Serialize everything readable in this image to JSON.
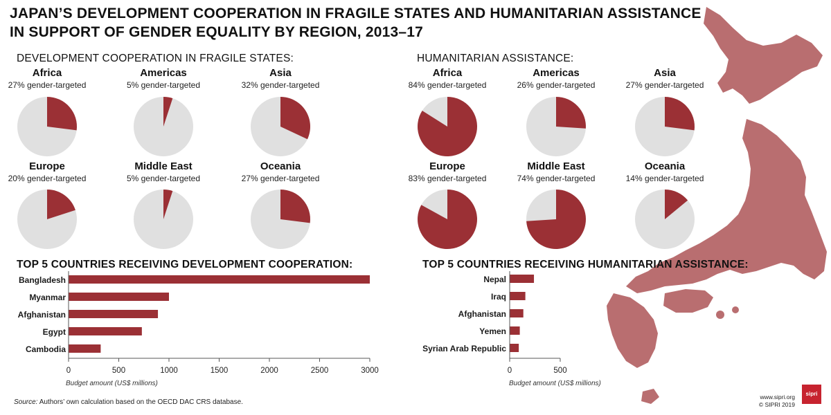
{
  "title_line1": "JAPAN’S DEVELOPMENT COOPERATION IN FRAGILE STATES AND HUMANITARIAN ASSISTANCE",
  "title_line2": "IN SUPPORT OF GENDER EQUALITY BY REGION, 2013–17",
  "colors": {
    "accent": "#9b3035",
    "pie_rest": "#e0e0e0",
    "map": "#b96e70"
  },
  "source_label": "Source:",
  "source_text": " Authors’ own calculation based on the OECD DAC CRS database.",
  "website": "www.sipri.org",
  "copyright": "© SIPRI 2019",
  "logo_text": "sipri",
  "chart_data": [
    {
      "type": "pie",
      "title": "DEVELOPMENT COOPERATION IN FRAGILE STATES:",
      "suffix": "gender-targeted",
      "slices": [
        {
          "region": "Africa",
          "pct": 27,
          "pct_label": "27% gender-targeted"
        },
        {
          "region": "Americas",
          "pct": 5,
          "pct_label": "5% gender-targeted"
        },
        {
          "region": "Asia",
          "pct": 32,
          "pct_label": "32% gender-targeted"
        },
        {
          "region": "Europe",
          "pct": 20,
          "pct_label": "20% gender-targeted"
        },
        {
          "region": "Middle East",
          "pct": 5,
          "pct_label": "5% gender-targeted"
        },
        {
          "region": "Oceania",
          "pct": 27,
          "pct_label": "27% gender-targeted"
        }
      ]
    },
    {
      "type": "pie",
      "title": "HUMANITARIAN ASSISTANCE:",
      "suffix": "gender-targeted",
      "slices": [
        {
          "region": "Africa",
          "pct": 84,
          "pct_label": "84% gender-targeted"
        },
        {
          "region": "Americas",
          "pct": 26,
          "pct_label": "26% gender-targeted"
        },
        {
          "region": "Asia",
          "pct": 27,
          "pct_label": "27% gender-targeted"
        },
        {
          "region": "Europe",
          "pct": 83,
          "pct_label": "83% gender-targeted"
        },
        {
          "region": "Middle East",
          "pct": 74,
          "pct_label": "74% gender-targeted"
        },
        {
          "region": "Oceania",
          "pct": 14,
          "pct_label": "14% gender-targeted"
        }
      ]
    },
    {
      "type": "bar",
      "orientation": "horizontal",
      "title": "TOP 5 COUNTRIES RECEIVING DEVELOPMENT COOPERATION:",
      "categories": [
        "Bangladesh",
        "Myanmar",
        "Afghanistan",
        "Egypt",
        "Cambodia"
      ],
      "values": [
        3000,
        1000,
        890,
        730,
        320
      ],
      "xlim": [
        0,
        3000
      ],
      "xticks": [
        0,
        500,
        1000,
        1500,
        2000,
        2500,
        3000
      ],
      "xlabel": "Budget amount (US$ millions)"
    },
    {
      "type": "bar",
      "orientation": "horizontal",
      "title": "TOP 5 COUNTRIES RECEIVING HUMANITARIAN ASSISTANCE:",
      "categories": [
        "Nepal",
        "Iraq",
        "Afghanistan",
        "Yemen",
        "Syrian Arab Republic"
      ],
      "values": [
        240,
        155,
        135,
        100,
        90
      ],
      "xlim": [
        0,
        500
      ],
      "xticks": [
        0,
        500
      ],
      "xlabel": "Budget amount (US$ millions)"
    }
  ]
}
